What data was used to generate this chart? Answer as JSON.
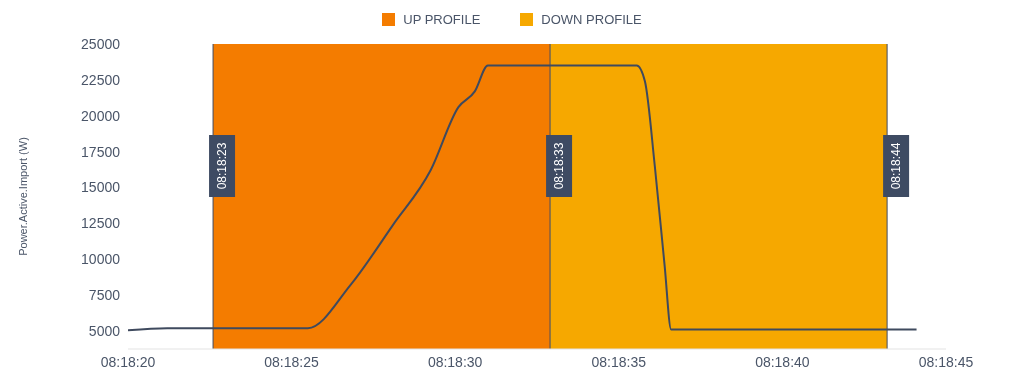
{
  "chart_data": {
    "type": "line",
    "ylabel": "Power.Active.Import (W)",
    "x": [
      8.305556,
      8.305889,
      8.307083,
      8.307444,
      8.307806,
      8.308125,
      8.308361,
      8.3085,
      8.308611,
      8.309875,
      8.309944,
      8.310028,
      8.310111,
      8.310167,
      8.31225
    ],
    "series": [
      {
        "color": "#3f4a5e",
        "values": [
          5050,
          5200,
          5200,
          8200,
          12400,
          16200,
          20600,
          21700,
          23500,
          23500,
          22400,
          16500,
          9600,
          5100,
          5100
        ]
      }
    ],
    "xlim": [
      8.305556,
      8.3125
    ],
    "xticks": [
      {
        "value": 8.305556,
        "label": "08:18:20"
      },
      {
        "value": 8.306944,
        "label": "08:18:25"
      },
      {
        "value": 8.308333,
        "label": "08:18:30"
      },
      {
        "value": 8.309722,
        "label": "08:18:35"
      },
      {
        "value": 8.311111,
        "label": "08:18:40"
      },
      {
        "value": 8.3125,
        "label": "08:18:45"
      }
    ],
    "ylim": [
      3750,
      25000
    ],
    "yticks": [
      5000,
      7500,
      10000,
      12500,
      15000,
      17500,
      20000,
      22500,
      25000
    ],
    "bands": [
      {
        "axis": "x",
        "from": 8.306278,
        "to": 8.309139,
        "label": "UP PROFILE",
        "color": "#f47c00"
      },
      {
        "axis": "x",
        "from": 8.309139,
        "to": 8.312,
        "label": "DOWN PROFILE",
        "color": "#f6a800"
      }
    ],
    "ref_lines": [
      {
        "axis": "x",
        "value": 8.306278,
        "label": "08:18:23",
        "color": "#3e4b63"
      },
      {
        "axis": "x",
        "value": 8.309139,
        "label": "08:18:33",
        "color": "#3e4b63"
      },
      {
        "axis": "x",
        "value": 8.312,
        "label": "08:18:44",
        "color": "#3e4b63"
      }
    ],
    "grid": false,
    "legend": "top",
    "marker": "none",
    "line_style": "solid"
  }
}
